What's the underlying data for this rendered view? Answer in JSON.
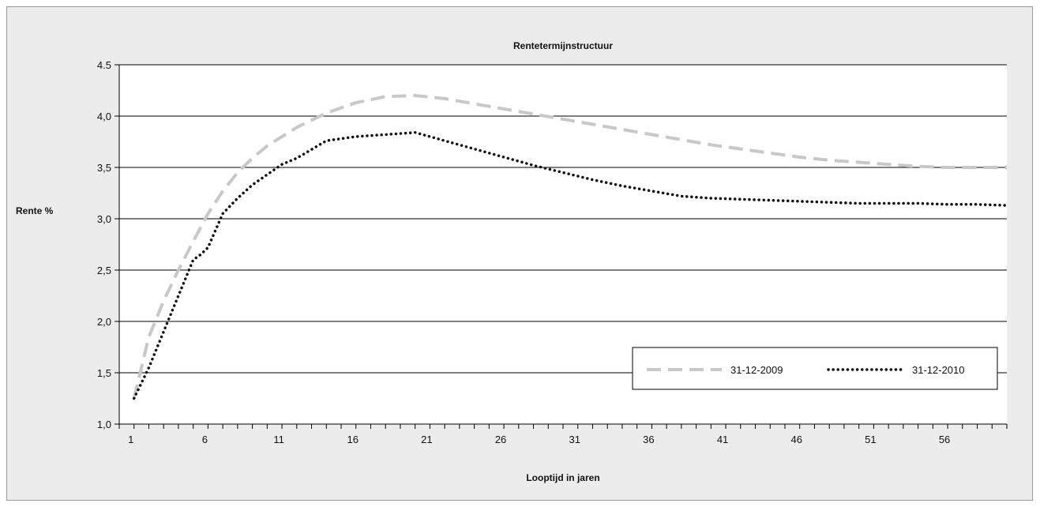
{
  "chart_data": {
    "type": "line",
    "title": "Rentetermijnstructuur",
    "xlabel": "Looptijd in jaren",
    "ylabel": "Rente %",
    "xlim": [
      0,
      60
    ],
    "ylim": [
      1.0,
      4.5
    ],
    "x_ticks": [
      1,
      6,
      11,
      16,
      21,
      26,
      31,
      36,
      41,
      46,
      51,
      56
    ],
    "y_ticks": [
      1.0,
      1.5,
      2.0,
      2.5,
      3.0,
      3.5,
      4.0,
      4.5
    ],
    "y_tick_labels": [
      "1,0",
      "1,5",
      "2,0",
      "2,5",
      "3,0",
      "3,5",
      "4,0",
      "4.5"
    ],
    "grid": "horizontal",
    "legend_position": "bottom-right",
    "series": [
      {
        "name": "31-12-2009",
        "color": "#c8c8c8",
        "style": "dashed",
        "x": [
          1,
          2,
          3,
          4,
          5,
          6,
          7,
          8,
          9,
          10,
          11,
          12,
          14,
          16,
          18,
          20,
          22,
          24,
          26,
          28,
          30,
          32,
          34,
          36,
          38,
          40,
          42,
          44,
          46,
          48,
          50,
          52,
          54,
          56,
          58,
          60
        ],
        "values": [
          1.25,
          1.85,
          2.2,
          2.5,
          2.78,
          3.05,
          3.27,
          3.45,
          3.59,
          3.71,
          3.8,
          3.89,
          4.03,
          4.13,
          4.19,
          4.2,
          4.17,
          4.12,
          4.07,
          4.02,
          3.97,
          3.92,
          3.87,
          3.82,
          3.77,
          3.72,
          3.68,
          3.64,
          3.6,
          3.57,
          3.55,
          3.53,
          3.51,
          3.5,
          3.5,
          3.5
        ]
      },
      {
        "name": "31-12-2010",
        "color": "#111111",
        "style": "dotted",
        "x": [
          1,
          2,
          3,
          4,
          5,
          5.5,
          6,
          7,
          8,
          9,
          10,
          11,
          12,
          14,
          16,
          18,
          20,
          22,
          24,
          26,
          28,
          30,
          32,
          34,
          36,
          38,
          40,
          42,
          44,
          46,
          48,
          50,
          52,
          54,
          56,
          58,
          60
        ],
        "values": [
          1.25,
          1.55,
          1.9,
          2.25,
          2.6,
          2.65,
          2.72,
          3.05,
          3.2,
          3.33,
          3.43,
          3.53,
          3.59,
          3.76,
          3.8,
          3.82,
          3.84,
          3.76,
          3.68,
          3.6,
          3.52,
          3.45,
          3.38,
          3.32,
          3.27,
          3.22,
          3.2,
          3.19,
          3.18,
          3.17,
          3.16,
          3.15,
          3.15,
          3.15,
          3.14,
          3.14,
          3.13
        ]
      }
    ]
  }
}
